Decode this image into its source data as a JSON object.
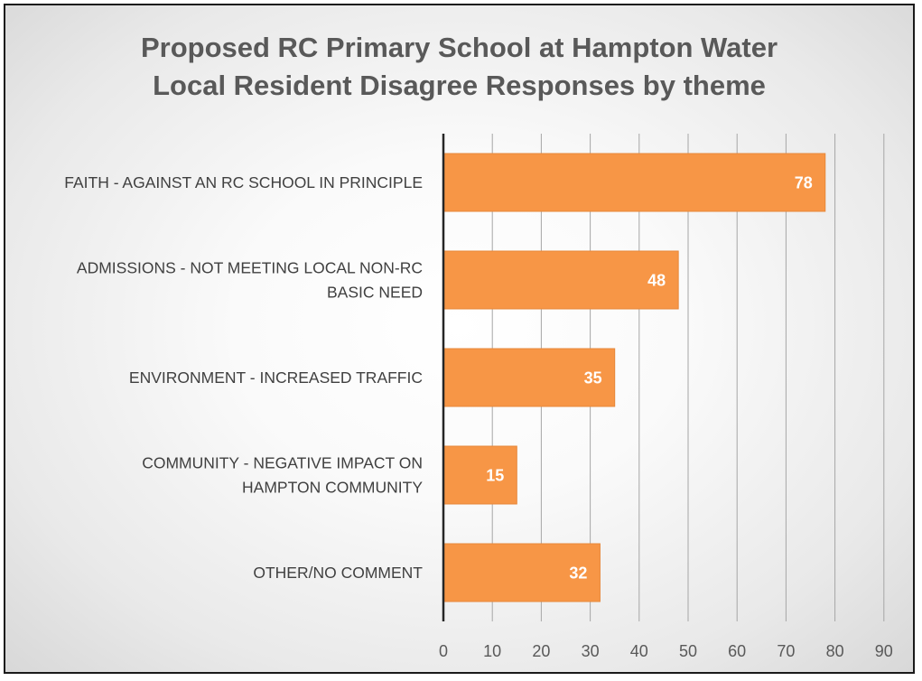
{
  "chart_data": {
    "type": "bar",
    "orientation": "horizontal",
    "title": "Proposed RC Primary School at Hampton Water",
    "subtitle": "Local Resident Disagree Responses by theme",
    "categories": [
      [
        "FAITH - AGAINST AN RC SCHOOL IN PRINCIPLE"
      ],
      [
        "ADMISSIONS - NOT MEETING LOCAL NON-RC",
        "BASIC NEED"
      ],
      [
        "ENVIRONMENT - INCREASED TRAFFIC"
      ],
      [
        "COMMUNITY - NEGATIVE IMPACT ON",
        "HAMPTON COMMUNITY"
      ],
      [
        "OTHER/NO COMMENT"
      ]
    ],
    "values": [
      78,
      48,
      35,
      15,
      32
    ],
    "xlim": [
      0,
      90
    ],
    "xticks": [
      0,
      10,
      20,
      30,
      40,
      50,
      60,
      70,
      80,
      90
    ],
    "grid": "vertical",
    "data_labels": true,
    "colors": {
      "bar": "#F79646",
      "bar_edge": "#e7883a",
      "grid": "#a6a6a6",
      "axis": "#262626",
      "title": "#595959",
      "data_label": "#ffffff"
    }
  }
}
